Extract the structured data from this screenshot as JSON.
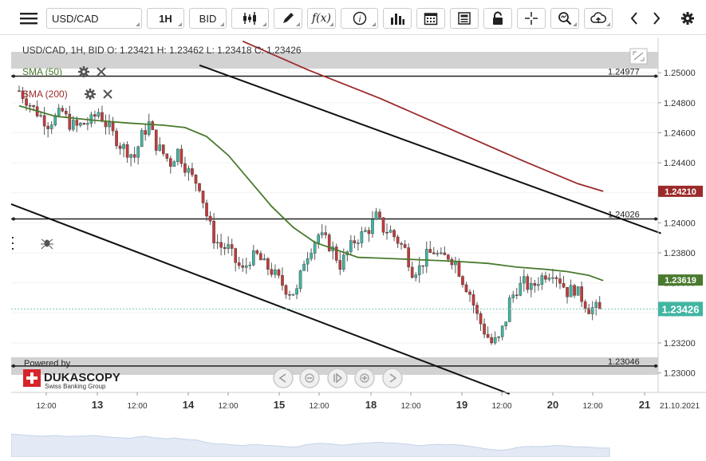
{
  "toolbar": {
    "menu_icon": "hamburger-menu-icon",
    "instrument": "USD/CAD",
    "timeframe": "1H",
    "side": "BID",
    "buttons": [
      "candle-type-icon",
      "draw-pencil-icon",
      "function-fx-icon",
      "info-icon",
      "volume-bars-icon",
      "calendar-icon",
      "news-icon",
      "lock-icon",
      "crosshair-icon",
      "zoom-icon",
      "cloud-upload-icon",
      "chevron-left-icon",
      "chevron-right-icon",
      "gear-icon"
    ]
  },
  "header": {
    "ohlc": "USD/CAD, 1H, BID   O: 1.23421  H: 1.23462  L: 1.23418  C: 1.23426"
  },
  "indicators": [
    {
      "label": "SMA (50)",
      "color": "#4a7a2e"
    },
    {
      "label": "SMA (200)",
      "color": "#9b2a2a"
    }
  ],
  "branding": {
    "powered_by": "Powered by",
    "name": "DUKASCOPY",
    "tagline": "Swiss Banking Group"
  },
  "nav_controls": [
    "prev-icon",
    "zoom-out-icon",
    "reset-icon",
    "zoom-in-icon",
    "next-icon"
  ],
  "chart_data": {
    "type": "candlestick",
    "ylim": [
      1.2295,
      1.2507
    ],
    "ytick_labels": [
      "1.25000",
      "1.24800",
      "1.24600",
      "1.24400",
      "1.24200",
      "1.24000",
      "1.23800",
      "1.23600",
      "1.23400",
      "1.23200",
      "1.23000"
    ],
    "xtick_labels": [
      "12:00",
      "13",
      "12:00",
      "14",
      "12:00",
      "15",
      "12:00",
      "18",
      "12:00",
      "19",
      "12:00",
      "20",
      "12:00",
      "21"
    ],
    "date_corner": "21.10.2021",
    "levels": [
      {
        "value": 1.24977,
        "label": "1.24977"
      },
      {
        "value": 1.24026,
        "label": "1.24026"
      },
      {
        "value": 1.23046,
        "label": "1.23046"
      }
    ],
    "badges": [
      {
        "value": 1.2421,
        "label": "1.24210",
        "color": "#9b2a2a"
      },
      {
        "value": 1.23619,
        "label": "1.23619",
        "color": "#4a7a2e"
      },
      {
        "value": 1.23426,
        "label": "1.23426",
        "color": "#41b5a2"
      }
    ],
    "last_price": 1.23426,
    "colors": {
      "up": "#41b5a2",
      "down": "#c23b3b",
      "sma50": "#4a7a2e",
      "sma200": "#9b2a2a"
    },
    "sma50_points": [
      [
        0,
        1.2478
      ],
      [
        10,
        1.2471
      ],
      [
        20,
        1.24685
      ],
      [
        30,
        1.24665
      ],
      [
        40,
        1.2465
      ],
      [
        46,
        1.24635
      ],
      [
        52,
        1.24575
      ],
      [
        58,
        1.2445
      ],
      [
        64,
        1.2428
      ],
      [
        70,
        1.2411
      ],
      [
        76,
        1.2397
      ],
      [
        82,
        1.2387
      ],
      [
        88,
        1.2382
      ],
      [
        94,
        1.2377
      ],
      [
        100,
        1.23765
      ],
      [
        110,
        1.23755
      ],
      [
        120,
        1.23745
      ],
      [
        130,
        1.2373
      ],
      [
        138,
        1.23705
      ],
      [
        146,
        1.2369
      ],
      [
        152,
        1.23675
      ],
      [
        158,
        1.2365
      ],
      [
        162,
        1.23615
      ]
    ],
    "sma200_points": [
      [
        62,
        1.2521
      ],
      [
        80,
        1.2502
      ],
      [
        100,
        1.2483
      ],
      [
        120,
        1.2462
      ],
      [
        140,
        1.2441
      ],
      [
        155,
        1.2426
      ],
      [
        162,
        1.2421
      ]
    ],
    "trendlines": [
      {
        "x1": 50,
        "y1": 1.2505,
        "x2": 178,
        "y2": 1.2393
      },
      {
        "x1": -5,
        "y1": 1.2415,
        "x2": 136,
        "y2": 1.2286
      }
    ]
  }
}
